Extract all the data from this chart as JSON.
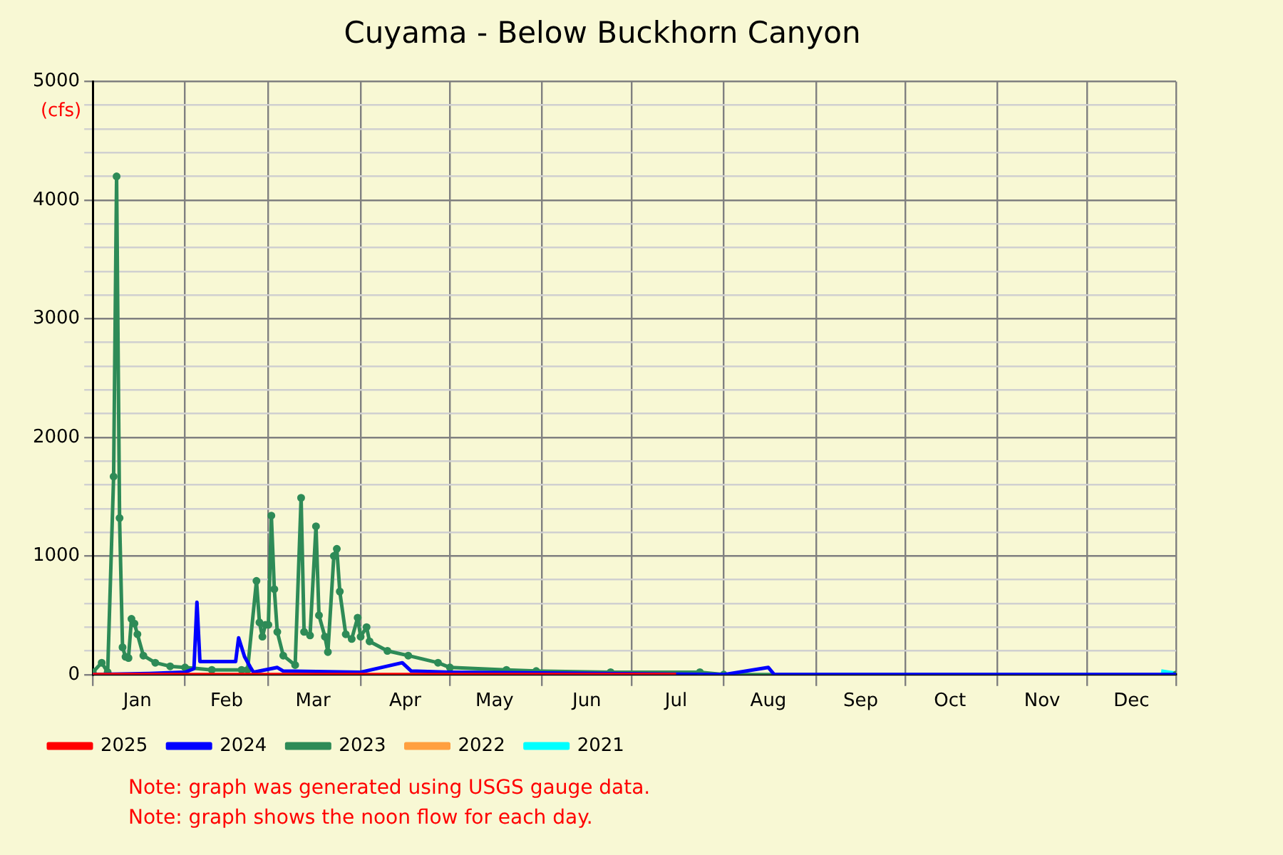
{
  "chart_data": {
    "type": "line",
    "title": "Cuyama - Below Buckhorn Canyon",
    "ylabel": "(cfs)",
    "xlim": [
      "--01-01",
      "--12-31"
    ],
    "xticks": [
      {
        "value": "--01-01",
        "label": null
      },
      {
        "value": "--01-16",
        "label": "Jan"
      },
      {
        "value": "--02-01",
        "label": null
      },
      {
        "value": "--02-15",
        "label": "Feb"
      },
      {
        "value": "--03-01",
        "label": null
      },
      {
        "value": "--03-16",
        "label": "Mar"
      },
      {
        "value": "--04-01",
        "label": null
      },
      {
        "value": "--04-16",
        "label": "Apr"
      },
      {
        "value": "--05-01",
        "label": null
      },
      {
        "value": "--05-16",
        "label": "May"
      },
      {
        "value": "--06-01",
        "label": null
      },
      {
        "value": "--06-16",
        "label": "Jun"
      },
      {
        "value": "--07-01",
        "label": null
      },
      {
        "value": "--07-16",
        "label": "Jul"
      },
      {
        "value": "--08-01",
        "label": null
      },
      {
        "value": "--08-16",
        "label": "Aug"
      },
      {
        "value": "--09-01",
        "label": null
      },
      {
        "value": "--09-16",
        "label": "Sep"
      },
      {
        "value": "--10-01",
        "label": null
      },
      {
        "value": "--10-16",
        "label": "Oct"
      },
      {
        "value": "--11-01",
        "label": null
      },
      {
        "value": "--11-16",
        "label": "Nov"
      },
      {
        "value": "--12-01",
        "label": null
      },
      {
        "value": "--12-16",
        "label": "Dec"
      },
      {
        "value": "--12-31",
        "label": null
      }
    ],
    "ylim": [
      0,
      5000
    ],
    "yticks": [
      0,
      {
        "value": 200,
        "label": null
      },
      {
        "value": 400,
        "label": null
      },
      {
        "value": 600,
        "label": null
      },
      {
        "value": 800,
        "label": null
      },
      1000,
      {
        "value": 1200,
        "label": null
      },
      {
        "value": 1400,
        "label": null
      },
      {
        "value": 1600,
        "label": null
      },
      {
        "value": 1800,
        "label": null
      },
      2000,
      {
        "value": 2200,
        "label": null
      },
      {
        "value": 2400,
        "label": null
      },
      {
        "value": 2600,
        "label": null
      },
      {
        "value": 2800,
        "label": null
      },
      3000,
      {
        "value": 3200,
        "label": null
      },
      {
        "value": 3400,
        "label": null
      },
      {
        "value": 3600,
        "label": null
      },
      {
        "value": 3800,
        "label": null
      },
      4000,
      {
        "value": 4200,
        "label": null
      },
      {
        "value": 4400,
        "label": null
      },
      {
        "value": 4600,
        "label": null
      },
      {
        "value": 4800,
        "label": null
      },
      5000
    ],
    "grid": true,
    "legend": "bottom",
    "marker": "circle",
    "line_style": "solid",
    "annotations": [
      "Note: graph was generated using USGS gauge data.",
      "Note: graph shows the noon flow for each day."
    ],
    "series": [
      {
        "name": "2025",
        "color": "#ff0000",
        "marker": "none",
        "x": [
          "--01-01",
          "--03-01",
          "--05-01",
          "--07-16"
        ],
        "values": [
          0,
          0,
          0,
          0
        ]
      },
      {
        "name": "2024",
        "color": "#0000ff",
        "marker": "none",
        "x": [
          "--01-01",
          "--01-20",
          "--02-01",
          "--02-04",
          "--02-05",
          "--02-06",
          "--02-18",
          "--02-19",
          "--02-21",
          "--02-23",
          "--02-24",
          "--03-04",
          "--03-06",
          "--04-01",
          "--04-15",
          "--04-18",
          "--05-01",
          "--08-01",
          "--08-16",
          "--08-18",
          "--12-31"
        ],
        "values": [
          0,
          10,
          20,
          50,
          610,
          110,
          110,
          310,
          150,
          60,
          20,
          60,
          30,
          20,
          100,
          30,
          20,
          0,
          60,
          0,
          0
        ]
      },
      {
        "name": "2023",
        "color": "#2e8b57",
        "x": [
          "--01-01",
          "--01-04",
          "--01-06",
          "--01-08",
          "--01-09",
          "--01-10",
          "--01-11",
          "--01-12",
          "--01-13",
          "--01-14",
          "--01-15",
          "--01-16",
          "--01-18",
          "--01-22",
          "--01-27",
          "--02-01",
          "--02-10",
          "--02-20",
          "--02-22",
          "--02-25",
          "--02-26",
          "--02-27",
          "--02-28",
          "--03-01",
          "--03-02",
          "--03-03",
          "--03-04",
          "--03-06",
          "--03-10",
          "--03-12",
          "--03-13",
          "--03-15",
          "--03-17",
          "--03-18",
          "--03-20",
          "--03-21",
          "--03-23",
          "--03-24",
          "--03-25",
          "--03-27",
          "--03-29",
          "--03-31",
          "--04-01",
          "--04-03",
          "--04-04",
          "--04-10",
          "--04-17",
          "--04-27",
          "--05-01",
          "--05-20",
          "--05-30",
          "--06-24",
          "--07-24",
          "--08-01",
          "--12-31"
        ],
        "values": [
          20,
          100,
          20,
          1670,
          4200,
          1320,
          230,
          150,
          140,
          470,
          430,
          340,
          160,
          100,
          70,
          60,
          40,
          40,
          40,
          790,
          440,
          320,
          420,
          420,
          1340,
          720,
          360,
          160,
          80,
          1490,
          360,
          330,
          1250,
          500,
          320,
          190,
          1000,
          1060,
          700,
          340,
          300,
          480,
          320,
          400,
          280,
          200,
          160,
          100,
          60,
          40,
          30,
          20,
          20,
          0,
          0
        ]
      },
      {
        "name": "2022",
        "color": "#ffa040",
        "marker": "none"
      },
      {
        "name": "2021",
        "color": "#00ffff",
        "marker": "none",
        "x": [
          "--12-26",
          "--12-31"
        ],
        "values": [
          30,
          10
        ]
      }
    ]
  }
}
